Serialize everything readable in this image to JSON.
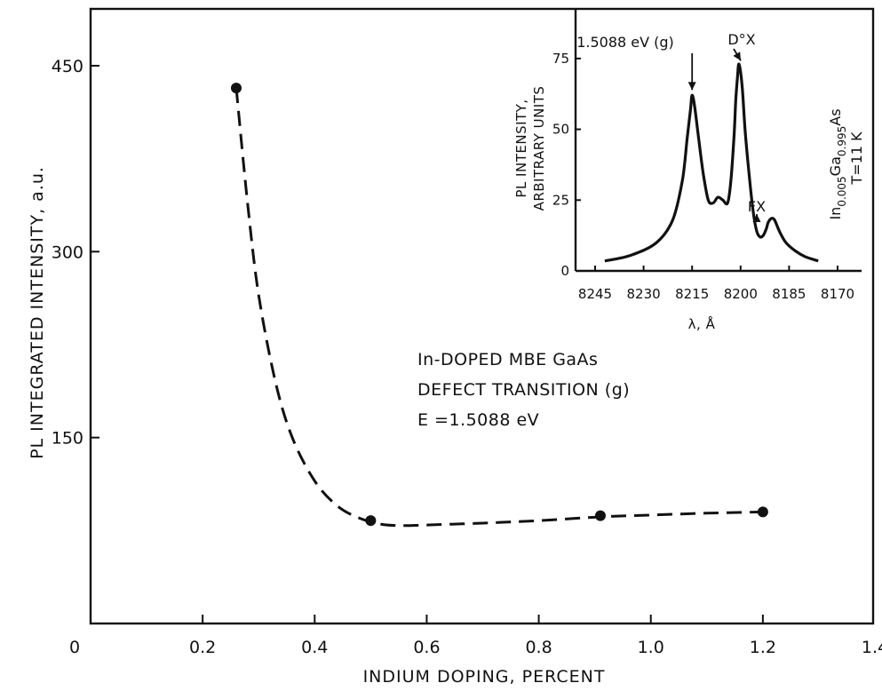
{
  "chart_data": [
    {
      "type": "scatter",
      "xlabel": "INDIUM DOPING, PERCENT",
      "ylabel": "PL INTEGRATED INTENSITY, a.u.",
      "xlim": [
        0,
        1.4
      ],
      "ylim": [
        0,
        450
      ],
      "xticks": [
        "0",
        "0.2",
        "0.4",
        "0.6",
        "0.8",
        "1.0",
        "1.2",
        "1.4"
      ],
      "yticks": [
        "150",
        "300",
        "450"
      ],
      "series": [
        {
          "points": [
            {
              "x": 0.26,
              "y": 432
            },
            {
              "x": 0.5,
              "y": 83
            },
            {
              "x": 0.91,
              "y": 87
            },
            {
              "x": 1.2,
              "y": 90
            }
          ],
          "curve": [
            [
              0.26,
              432
            ],
            [
              0.28,
              340
            ],
            [
              0.3,
              265
            ],
            [
              0.33,
              195
            ],
            [
              0.36,
              150
            ],
            [
              0.4,
              115
            ],
            [
              0.44,
              95
            ],
            [
              0.48,
              85
            ],
            [
              0.52,
              80
            ],
            [
              0.56,
              79
            ],
            [
              0.6,
              79.5
            ],
            [
              0.7,
              81
            ],
            [
              0.8,
              83
            ],
            [
              0.91,
              86
            ],
            [
              1.0,
              87.5
            ],
            [
              1.1,
              89
            ],
            [
              1.2,
              90
            ]
          ]
        }
      ],
      "annotations": [
        "In-DOPED MBE GaAs",
        "DEFECT TRANSITION (g)",
        "E =1.5088 eV"
      ]
    },
    {
      "type": "line",
      "xlabel": "λ, Å",
      "ylabel": "PL INTENSITY, ARBITRARY UNITS",
      "xlim": [
        8245,
        8170
      ],
      "ylim": [
        0,
        85
      ],
      "xticks": [
        "8245",
        "8230",
        "8215",
        "8200",
        "8185",
        "8170"
      ],
      "yticks": [
        "0",
        "25",
        "50",
        "75"
      ],
      "series": [
        {
          "x": [
            8242,
            8234,
            8226,
            8221,
            8218,
            8216.5,
            8215.5,
            8215,
            8214.2,
            8213,
            8211.5,
            8210,
            8208.5,
            8207,
            8205.5,
            8204,
            8203,
            8202,
            8201.5,
            8201,
            8200.5,
            8199.5,
            8198.5,
            8197,
            8196,
            8195,
            8194,
            8193,
            8192,
            8191.5,
            8190.5,
            8189.5,
            8188,
            8186,
            8183,
            8180,
            8176
          ],
          "values": [
            3.5,
            5.5,
            10,
            18,
            32,
            47,
            57,
            62,
            58,
            47,
            34,
            25,
            24,
            26,
            25,
            24,
            32,
            48,
            60,
            68,
            73,
            65,
            48,
            30,
            20,
            14,
            12,
            12.5,
            15,
            17,
            18.5,
            18,
            14,
            10,
            7,
            5,
            3.5
          ]
        }
      ],
      "annotations": [
        "1.5088 eV (g)",
        "D°X",
        "FX"
      ],
      "side_label": {
        "composition_prefix": "In",
        "composition_in_sub": "0.005",
        "composition_ga": "Ga",
        "composition_ga_sub": "0.995",
        "composition_as": "As",
        "temperature": "T=11 K"
      }
    }
  ]
}
